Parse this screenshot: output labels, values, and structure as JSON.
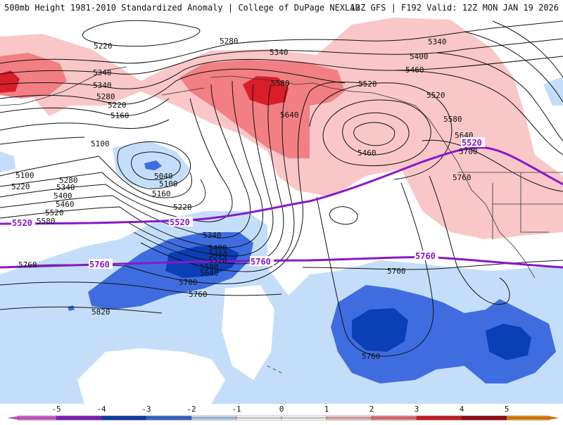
{
  "title": {
    "left": "500mb Height 1981-2010 Standardized Anomaly | College of DuPage NEXLAB",
    "right": "12Z GFS | F192 Valid: 12Z MON JAN 19 2026"
  },
  "colors": {
    "anom_m5": "#e066d8",
    "anom_m4": "#8d1fc7",
    "anom_m3": "#0a3fb8",
    "anom_m2": "#3f6de0",
    "anom_m1": "#c4defa",
    "anom_0": "#ffffff",
    "anom_p1": "#f9c7c8",
    "anom_p2": "#f27f83",
    "anom_p3": "#d91d2a",
    "anom_p4": "#a10612",
    "anom_p5": "#f28c16",
    "highlight_contour": "#8a17c9",
    "contour": "#111111"
  },
  "colorbar": {
    "ticks": [
      "-5",
      "-4",
      "-3",
      "-2",
      "-1",
      "0",
      "1",
      "2",
      "3",
      "4",
      "5"
    ]
  },
  "contour_labels": [
    {
      "text": "5220"
    },
    {
      "text": "5280"
    },
    {
      "text": "5340"
    },
    {
      "text": "5340"
    },
    {
      "text": "5400"
    },
    {
      "text": "5460"
    },
    {
      "text": "5340"
    },
    {
      "text": "5280"
    },
    {
      "text": "5220"
    },
    {
      "text": "5160"
    },
    {
      "text": "5100"
    },
    {
      "text": "5580"
    },
    {
      "text": "5520"
    },
    {
      "text": "5520"
    },
    {
      "text": "5640"
    },
    {
      "text": "5580"
    },
    {
      "text": "5460"
    },
    {
      "text": "5040"
    },
    {
      "text": "5100"
    },
    {
      "text": "5100"
    },
    {
      "text": "5160"
    },
    {
      "text": "5220"
    },
    {
      "text": "5280"
    },
    {
      "text": "5220"
    },
    {
      "text": "5340"
    },
    {
      "text": "5400"
    },
    {
      "text": "5460"
    },
    {
      "text": "5520"
    },
    {
      "text": "5580"
    },
    {
      "text": "5340"
    },
    {
      "text": "5400"
    },
    {
      "text": "5460"
    },
    {
      "text": "5520"
    },
    {
      "text": "5580"
    },
    {
      "text": "5640"
    },
    {
      "text": "5700"
    },
    {
      "text": "5760"
    },
    {
      "text": "5760"
    },
    {
      "text": "5820"
    },
    {
      "text": "5700"
    },
    {
      "text": "5760"
    },
    {
      "text": "5640"
    },
    {
      "text": "5700"
    },
    {
      "text": "5760"
    },
    {
      "text": "5340"
    }
  ],
  "highlight_labels": [
    {
      "text": "5520"
    },
    {
      "text": "5520"
    },
    {
      "text": "5520"
    },
    {
      "text": "5760"
    },
    {
      "text": "5760"
    },
    {
      "text": "5760"
    }
  ]
}
